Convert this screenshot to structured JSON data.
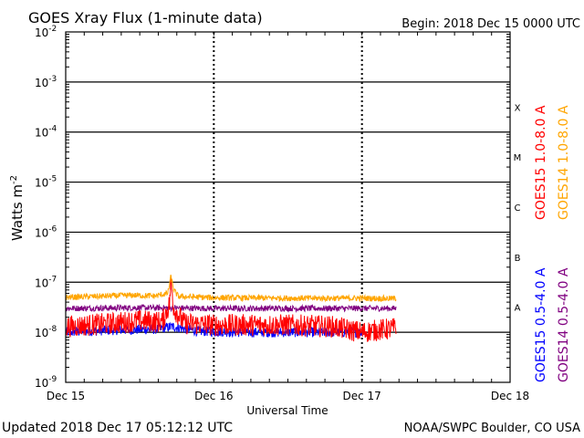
{
  "chart_data": {
    "type": "line",
    "title": "GOES Xray Flux (1-minute data)",
    "begin_label": "Begin:  2018 Dec 15 0000 UTC",
    "xlabel": "Universal Time",
    "ylabel": "Watts m",
    "ylabel_sup": "-2",
    "x_unit": "days since 2018 Dec 15 0000 UTC",
    "xlim": [
      0,
      3
    ],
    "x_ticks": [
      {
        "value": 0,
        "label": "Dec 15"
      },
      {
        "value": 1,
        "label": "Dec 16"
      },
      {
        "value": 2,
        "label": "Dec 17"
      },
      {
        "value": 3,
        "label": "Dec 18"
      }
    ],
    "y_scale": "log",
    "ylim": [
      1e-09,
      0.01
    ],
    "y_ticks": [
      {
        "exp": -2,
        "base": "10",
        "sup": "-2"
      },
      {
        "exp": -3,
        "base": "10",
        "sup": "-3"
      },
      {
        "exp": -4,
        "base": "10",
        "sup": "-4"
      },
      {
        "exp": -5,
        "base": "10",
        "sup": "-5"
      },
      {
        "exp": -6,
        "base": "10",
        "sup": "-6"
      },
      {
        "exp": -7,
        "base": "10",
        "sup": "-7"
      },
      {
        "exp": -8,
        "base": "10",
        "sup": "-8"
      },
      {
        "exp": -9,
        "base": "10",
        "sup": "-9"
      }
    ],
    "flare_classes": [
      {
        "label": "X",
        "exp": -4
      },
      {
        "label": "M",
        "exp": -5
      },
      {
        "label": "C",
        "exp": -6
      },
      {
        "label": "B",
        "exp": -7
      },
      {
        "label": "A",
        "exp": -8
      }
    ],
    "series": [
      {
        "name": "GOES14 1.0-8.0 A",
        "color": "#ffa500",
        "points": [
          [
            0,
            5e-08
          ],
          [
            0.2,
            5.2e-08
          ],
          [
            0.45,
            5.5e-08
          ],
          [
            0.6,
            5.3e-08
          ],
          [
            0.69,
            6e-08
          ],
          [
            0.71,
            1.3e-07
          ],
          [
            0.73,
            7e-08
          ],
          [
            0.76,
            5.2e-08
          ],
          [
            1.0,
            4.9e-08
          ],
          [
            1.5,
            4.8e-08
          ],
          [
            2.0,
            4.8e-08
          ],
          [
            2.23,
            4.7e-08
          ]
        ]
      },
      {
        "name": "GOES15 1.0-8.0 A",
        "color": "#ff0000",
        "points": [
          [
            0,
            1.3e-08
          ],
          [
            0.3,
            1.5e-08
          ],
          [
            0.5,
            1.7e-08
          ],
          [
            0.65,
            1.6e-08
          ],
          [
            0.7,
            3.5e-08
          ],
          [
            0.71,
            1e-07
          ],
          [
            0.73,
            3e-08
          ],
          [
            0.8,
            1.5e-08
          ],
          [
            1.0,
            1.4e-08
          ],
          [
            1.5,
            1.4e-08
          ],
          [
            1.8,
            1.3e-08
          ],
          [
            2.0,
            1e-08
          ],
          [
            2.1,
            1.1e-08
          ],
          [
            2.23,
            1.2e-08
          ]
        ]
      },
      {
        "name": "GOES14 0.5-4.0 A",
        "color": "#800080",
        "points": [
          [
            0,
            3e-08
          ],
          [
            0.5,
            3.1e-08
          ],
          [
            1.0,
            3e-08
          ],
          [
            1.5,
            3e-08
          ],
          [
            2.0,
            3e-08
          ],
          [
            2.23,
            3e-08
          ]
        ]
      },
      {
        "name": "GOES15 0.5-4.0 A",
        "color": "#0000ff",
        "points": [
          [
            0,
            1e-08
          ],
          [
            0.3,
            1.1e-08
          ],
          [
            0.6,
            1.15e-08
          ],
          [
            0.72,
            1.3e-08
          ],
          [
            0.9,
            1.05e-08
          ],
          [
            1.2,
            1e-08
          ],
          [
            1.6,
            1e-08
          ],
          [
            2.0,
            1e-08
          ]
        ]
      }
    ]
  },
  "footer": {
    "updated": "Updated 2018 Dec 17 05:12:12 UTC",
    "source": "NOAA/SWPC Boulder, CO USA"
  }
}
